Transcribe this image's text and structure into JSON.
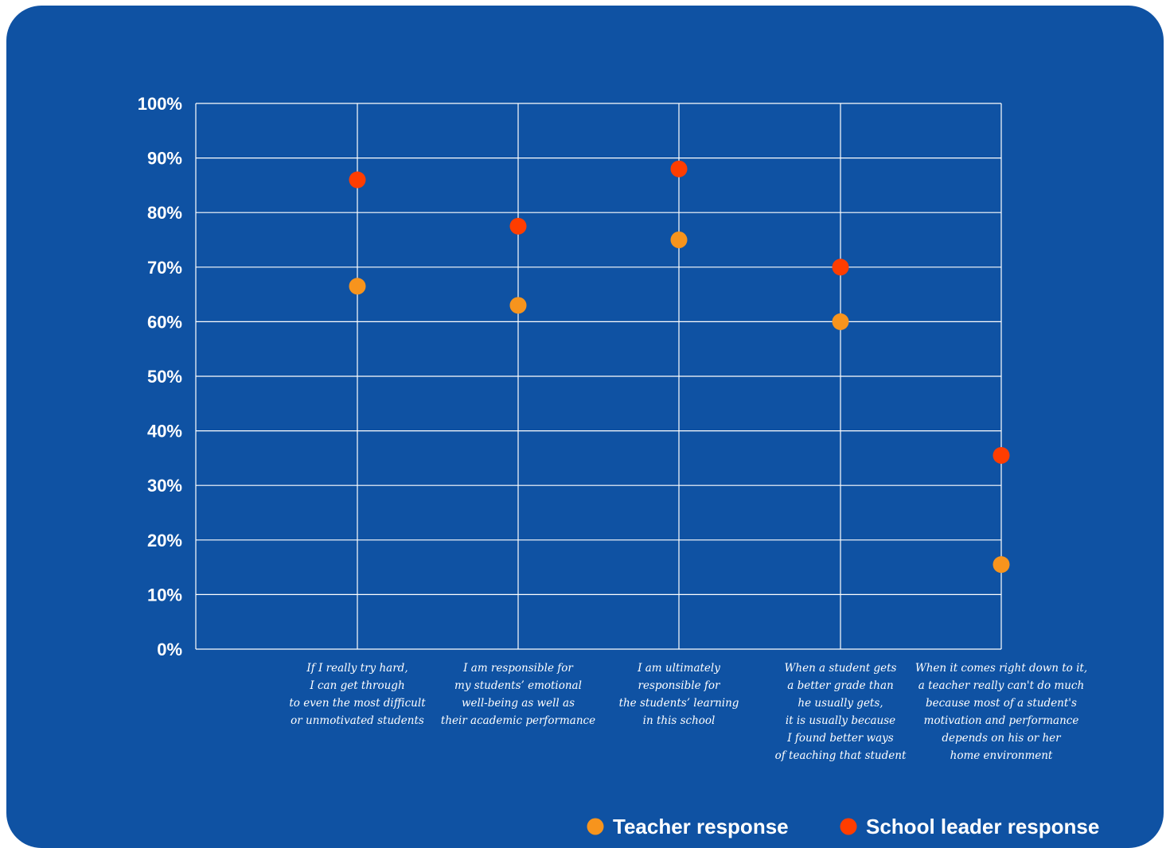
{
  "chart_data": {
    "type": "scatter",
    "categories": [
      [
        "If I really try hard,",
        "I can get through",
        "to even the most difficult",
        "or unmotivated students"
      ],
      [
        "I am responsible for",
        "my students’ emotional",
        "well-being as well as",
        "their academic performance"
      ],
      [
        "I am ultimately",
        "responsible for",
        "the students’ learning",
        "in this school"
      ],
      [
        "When a student gets",
        "a better grade than",
        "he usually gets,",
        "it is usually because",
        "I found better ways",
        "of teaching that student"
      ],
      [
        "When it comes right down to it,",
        "a teacher really can't do much",
        "because most of a student's",
        "motivation and performance",
        "depends on his or her",
        "home environment"
      ]
    ],
    "series": [
      {
        "name": "Teacher response",
        "color": "#f7941d",
        "values": [
          66.5,
          63,
          75,
          60,
          15.5
        ]
      },
      {
        "name": "School leader response",
        "color": "#ff3d00",
        "values": [
          86,
          77.5,
          88,
          70,
          35.5
        ]
      }
    ],
    "ylim": [
      0,
      100
    ],
    "yticks": [
      0,
      10,
      20,
      30,
      40,
      50,
      60,
      70,
      80,
      90,
      100
    ],
    "ytick_labels": [
      "0%",
      "10%",
      "20%",
      "30%",
      "40%",
      "50%",
      "60%",
      "70%",
      "80%",
      "90%",
      "100%"
    ],
    "grid": true,
    "legend_position": "bottom-right",
    "background_color": "#0f52a3"
  }
}
